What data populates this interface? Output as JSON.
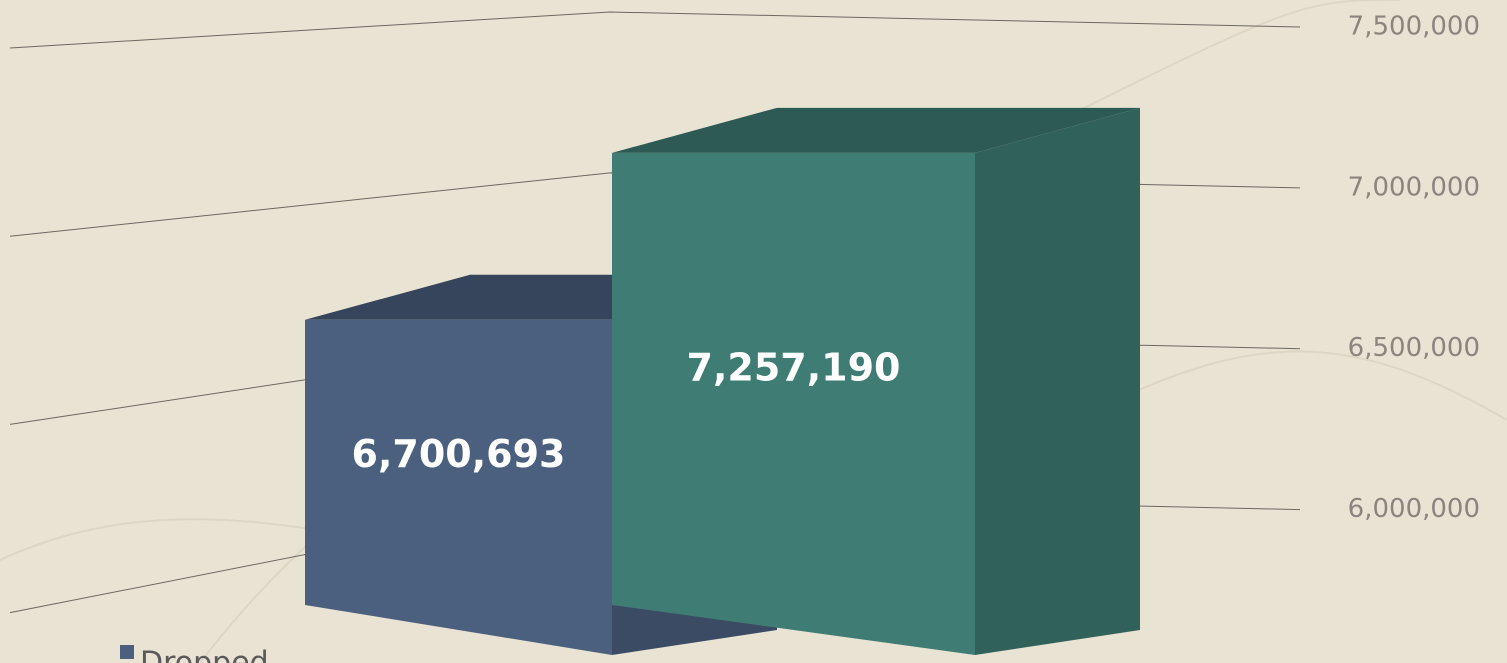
{
  "chart_data": {
    "type": "bar3d",
    "series": [
      {
        "name": "Dropped",
        "color": "#4b607f",
        "values": [
          6700693
        ],
        "value_labels": [
          "6,700,693"
        ]
      },
      {
        "color": "#3f7d74",
        "values": [
          7257190
        ],
        "value_labels": [
          "7,257,190"
        ]
      }
    ],
    "ylim": [
      5750000,
      7500000
    ],
    "yticks": [
      {
        "value": 6000000,
        "label": "6,000,000"
      },
      {
        "value": 6500000,
        "label": "6,500,000"
      },
      {
        "value": 7000000,
        "label": "7,000,000"
      },
      {
        "value": 7500000,
        "label": "7,500,000"
      }
    ],
    "grid": true
  }
}
